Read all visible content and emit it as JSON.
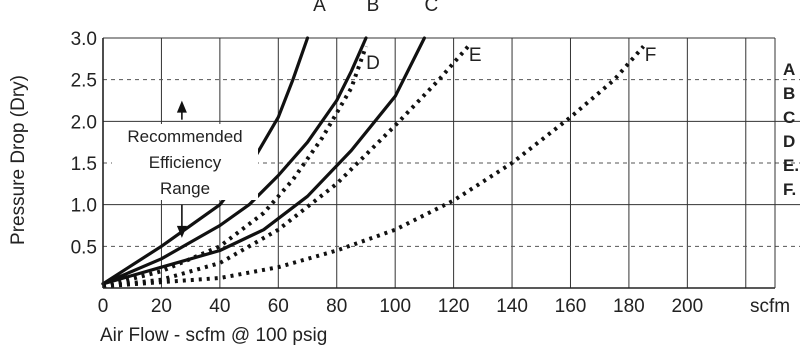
{
  "chart_data": {
    "type": "line",
    "title": "",
    "xlabel": "Air Flow - scfm @ 100 psig",
    "ylabel": "Pressure Drop (Dry)",
    "x_unit_label": "scfm",
    "xlim": [
      0,
      230
    ],
    "ylim": [
      0,
      3.0
    ],
    "x_ticks": [
      "0",
      "20",
      "40",
      "60",
      "80",
      "100",
      "120",
      "140",
      "160",
      "180",
      "200"
    ],
    "y_ticks": [
      "0.5",
      "1.0",
      "1.5",
      "2.0",
      "2.5",
      "3.0"
    ],
    "grid": true,
    "series": [
      {
        "name": "A",
        "style": "solid",
        "x": [
          0,
          20,
          40,
          50,
          60,
          65,
          70
        ],
        "y": [
          0.05,
          0.5,
          1.0,
          1.45,
          2.05,
          2.5,
          3.0
        ]
      },
      {
        "name": "B",
        "style": "solid",
        "x": [
          0,
          20,
          40,
          50,
          60,
          70,
          80,
          85,
          90
        ],
        "y": [
          0.05,
          0.35,
          0.75,
          1.0,
          1.35,
          1.75,
          2.25,
          2.6,
          3.0
        ]
      },
      {
        "name": "C",
        "style": "solid",
        "x": [
          0,
          20,
          40,
          55,
          70,
          85,
          100,
          110
        ],
        "y": [
          0.05,
          0.25,
          0.45,
          0.7,
          1.1,
          1.65,
          2.3,
          3.0
        ]
      },
      {
        "name": "D",
        "style": "dotted",
        "x": [
          0,
          20,
          40,
          55,
          65,
          75,
          85,
          90
        ],
        "y": [
          0.02,
          0.2,
          0.5,
          0.9,
          1.3,
          1.8,
          2.4,
          2.9
        ]
      },
      {
        "name": "E",
        "style": "dotted",
        "x": [
          0,
          20,
          40,
          60,
          80,
          100,
          115,
          125
        ],
        "y": [
          0.02,
          0.1,
          0.3,
          0.7,
          1.25,
          1.95,
          2.5,
          2.9
        ]
      },
      {
        "name": "F",
        "style": "dotted",
        "x": [
          0,
          40,
          60,
          80,
          100,
          120,
          140,
          160,
          175,
          185
        ],
        "y": [
          0.02,
          0.12,
          0.25,
          0.45,
          0.7,
          1.05,
          1.5,
          2.05,
          2.5,
          2.9
        ]
      }
    ],
    "annotation": {
      "lines": [
        "Recommended",
        "Efficiency",
        "Range"
      ],
      "arrow_x": 27,
      "arrow_from_y": 2.2,
      "arrow_to_y": 0.65
    },
    "legend": {
      "placement": "right",
      "entries": [
        "A",
        "B",
        "C",
        "D",
        "E.",
        "F."
      ]
    }
  }
}
